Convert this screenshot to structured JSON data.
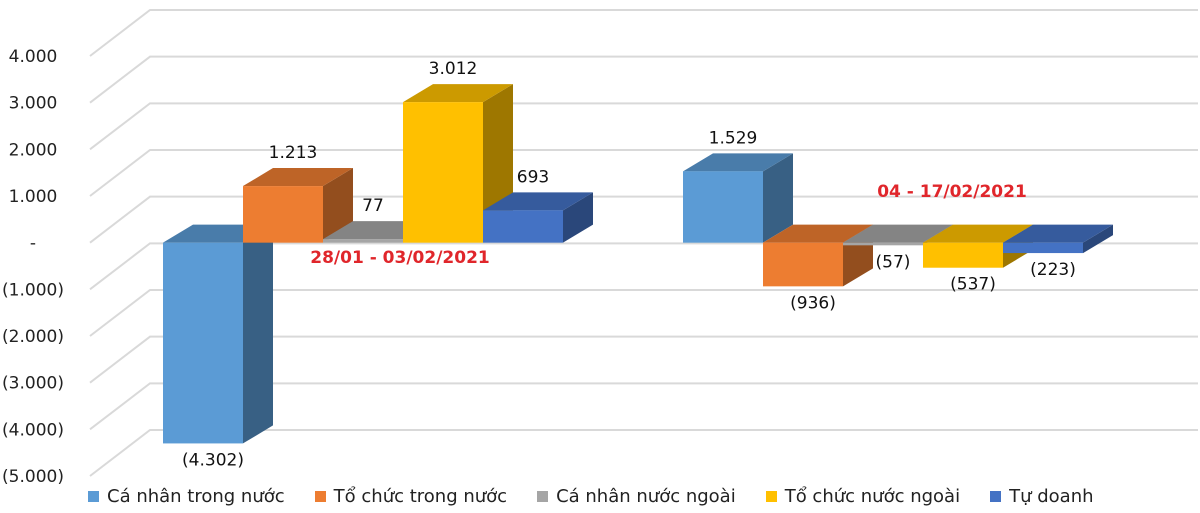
{
  "chart_data": {
    "type": "bar",
    "style": "3d-clustered-column",
    "categories": [
      "28/01 - 03/02/2021",
      "04 - 17/02/2021"
    ],
    "series": [
      {
        "name": "Cá nhân trong nước",
        "values": [
          -4302,
          1529
        ],
        "labels": [
          "(4.302)",
          "1.529"
        ],
        "color": "#5b9bd5"
      },
      {
        "name": "Tổ chức trong nước",
        "values": [
          1213,
          -936
        ],
        "labels": [
          "1.213",
          "(936)"
        ],
        "color": "#ed7d31"
      },
      {
        "name": "Cá nhân nước ngoài",
        "values": [
          77,
          -57
        ],
        "labels": [
          "77",
          "(57)"
        ],
        "color": "#a5a5a5"
      },
      {
        "name": "Tổ chức nước ngoài",
        "values": [
          3012,
          -537
        ],
        "labels": [
          "3.012",
          "(537)"
        ],
        "color": "#ffc000"
      },
      {
        "name": "Tự doanh",
        "values": [
          693,
          -223
        ],
        "labels": [
          "693",
          "(223)"
        ],
        "color": "#4472c4"
      }
    ],
    "ylim": [
      -5000,
      4000
    ],
    "y_ticks": [
      4000,
      3000,
      2000,
      1000,
      0,
      -1000,
      -2000,
      -3000,
      -4000,
      -5000
    ],
    "y_tick_labels": [
      "4.000",
      "3.000",
      "2.000",
      "1.000",
      "-",
      "(1.000)",
      "(2.000)",
      "(3.000)",
      "(4.000)",
      "(5.000)"
    ],
    "grid": true,
    "legend_position": "bottom",
    "annotation_color": "#e0262b"
  }
}
